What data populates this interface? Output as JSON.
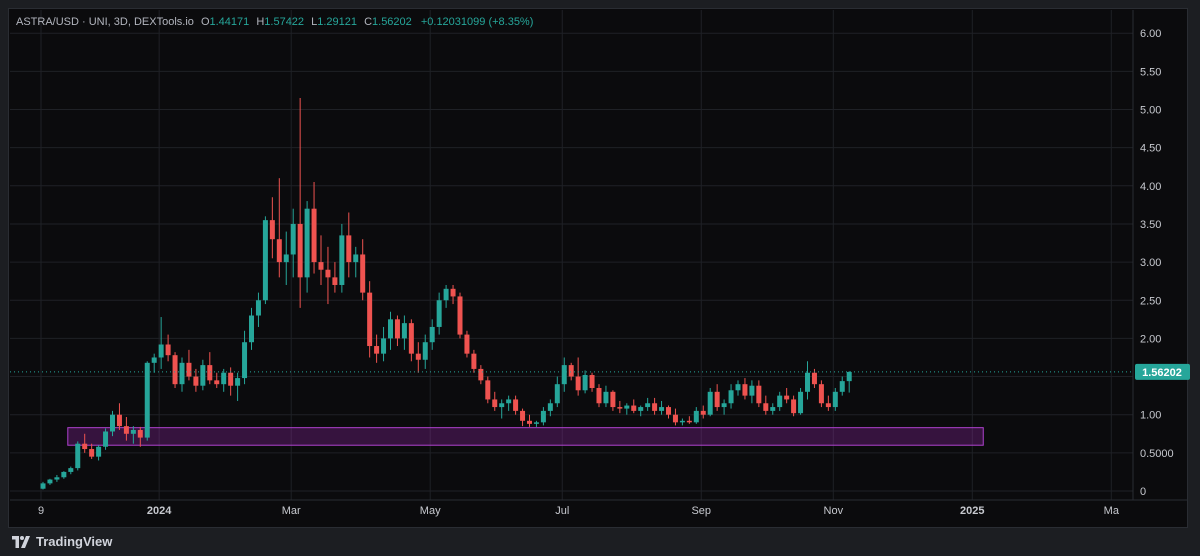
{
  "legend": {
    "symbol": "ASTRA/USD · UNI, 3D, DEXTools.io",
    "o_label": "O",
    "o_value": "1.44171",
    "h_label": "H",
    "h_value": "1.57422",
    "l_label": "L",
    "l_value": "1.29121",
    "c_label": "C",
    "c_value": "1.56202",
    "change": "+0.12031099 (+8.35%)"
  },
  "footer": {
    "brand": "TradingView"
  },
  "colors": {
    "up": "#26a69a",
    "down": "#ef5350",
    "zone": "#a020c0",
    "price_tag": "#26a69a",
    "grid": "#1f2126",
    "bg": "#0b0b0d"
  },
  "chart_data": {
    "type": "candlestick",
    "title": "ASTRA/USD · UNI, 3D, DEXTools.io",
    "ylim": [
      0,
      6.2
    ],
    "y_ticks": [
      "6.00",
      "5.50",
      "5.00",
      "4.50",
      "4.00",
      "3.50",
      "3.00",
      "2.50",
      "2.00",
      "1.50",
      "1.00",
      "0.5000",
      "0"
    ],
    "y_tick_values": [
      6.0,
      5.5,
      5.0,
      4.5,
      4.0,
      3.5,
      3.0,
      2.5,
      2.0,
      1.5,
      1.0,
      0.5,
      0
    ],
    "x_ticks": [
      "9",
      "2024",
      "Mar",
      "May",
      "Jul",
      "Sep",
      "Nov",
      "2025",
      "Ma"
    ],
    "x_tick_index": [
      0,
      17,
      36,
      56,
      75,
      95,
      114,
      134,
      154
    ],
    "last_price_label": "1.56202",
    "last_price": 1.56202,
    "grid": true,
    "demand_zone": {
      "y_from": 0.6,
      "y_to": 0.83,
      "x_from_index": 4,
      "x_to_index": 135
    },
    "candles": [
      [
        0.03,
        0.12,
        0.02,
        0.1
      ],
      [
        0.1,
        0.16,
        0.08,
        0.15
      ],
      [
        0.15,
        0.21,
        0.12,
        0.18
      ],
      [
        0.18,
        0.26,
        0.16,
        0.25
      ],
      [
        0.25,
        0.32,
        0.22,
        0.3
      ],
      [
        0.3,
        0.65,
        0.27,
        0.62
      ],
      [
        0.62,
        0.75,
        0.5,
        0.55
      ],
      [
        0.55,
        0.62,
        0.42,
        0.45
      ],
      [
        0.45,
        0.6,
        0.4,
        0.58
      ],
      [
        0.58,
        0.82,
        0.54,
        0.78
      ],
      [
        0.78,
        1.05,
        0.72,
        1.0
      ],
      [
        1.0,
        1.15,
        0.8,
        0.85
      ],
      [
        0.85,
        0.97,
        0.66,
        0.75
      ],
      [
        0.75,
        0.85,
        0.62,
        0.8
      ],
      [
        0.8,
        0.84,
        0.58,
        0.7
      ],
      [
        0.7,
        1.7,
        0.66,
        1.68
      ],
      [
        1.68,
        1.8,
        1.55,
        1.75
      ],
      [
        1.75,
        2.28,
        1.6,
        1.92
      ],
      [
        1.92,
        2.05,
        1.7,
        1.78
      ],
      [
        1.78,
        1.82,
        1.35,
        1.4
      ],
      [
        1.4,
        1.75,
        1.3,
        1.68
      ],
      [
        1.68,
        1.85,
        1.45,
        1.5
      ],
      [
        1.5,
        1.6,
        1.3,
        1.38
      ],
      [
        1.38,
        1.72,
        1.32,
        1.65
      ],
      [
        1.65,
        1.82,
        1.4,
        1.45
      ],
      [
        1.45,
        1.55,
        1.35,
        1.4
      ],
      [
        1.4,
        1.6,
        1.3,
        1.55
      ],
      [
        1.55,
        1.62,
        1.25,
        1.38
      ],
      [
        1.38,
        1.55,
        1.18,
        1.48
      ],
      [
        1.48,
        2.1,
        1.4,
        1.95
      ],
      [
        1.95,
        2.4,
        1.85,
        2.3
      ],
      [
        2.3,
        2.6,
        2.15,
        2.5
      ],
      [
        2.5,
        3.6,
        2.45,
        3.55
      ],
      [
        3.55,
        3.85,
        3.05,
        3.3
      ],
      [
        3.3,
        4.1,
        2.8,
        3.0
      ],
      [
        3.0,
        3.4,
        2.7,
        3.1
      ],
      [
        3.1,
        3.7,
        2.8,
        3.5
      ],
      [
        3.5,
        5.15,
        2.4,
        2.8
      ],
      [
        2.8,
        3.8,
        2.6,
        3.7
      ],
      [
        3.7,
        4.05,
        2.85,
        3.0
      ],
      [
        3.0,
        3.35,
        2.7,
        2.9
      ],
      [
        2.9,
        3.2,
        2.45,
        2.8
      ],
      [
        2.8,
        3.0,
        2.6,
        2.7
      ],
      [
        2.7,
        3.5,
        2.6,
        3.35
      ],
      [
        3.35,
        3.65,
        2.8,
        3.0
      ],
      [
        3.0,
        3.2,
        2.8,
        3.1
      ],
      [
        3.1,
        3.3,
        2.5,
        2.6
      ],
      [
        2.6,
        2.75,
        1.75,
        1.9
      ],
      [
        1.9,
        2.05,
        1.68,
        1.8
      ],
      [
        1.8,
        2.15,
        1.7,
        2.0
      ],
      [
        2.0,
        2.35,
        1.85,
        2.25
      ],
      [
        2.25,
        2.3,
        1.9,
        2.0
      ],
      [
        2.0,
        2.3,
        1.85,
        2.2
      ],
      [
        2.2,
        2.25,
        1.7,
        1.8
      ],
      [
        1.8,
        1.95,
        1.55,
        1.72
      ],
      [
        1.72,
        2.05,
        1.6,
        1.95
      ],
      [
        1.95,
        2.25,
        1.85,
        2.15
      ],
      [
        2.15,
        2.6,
        2.05,
        2.5
      ],
      [
        2.5,
        2.7,
        2.4,
        2.65
      ],
      [
        2.65,
        2.7,
        2.45,
        2.55
      ],
      [
        2.55,
        2.6,
        2.0,
        2.05
      ],
      [
        2.05,
        2.1,
        1.75,
        1.8
      ],
      [
        1.8,
        1.85,
        1.55,
        1.6
      ],
      [
        1.6,
        1.65,
        1.4,
        1.45
      ],
      [
        1.45,
        1.5,
        1.15,
        1.2
      ],
      [
        1.2,
        1.3,
        1.05,
        1.1
      ],
      [
        1.1,
        1.2,
        0.95,
        1.15
      ],
      [
        1.15,
        1.25,
        1.05,
        1.2
      ],
      [
        1.2,
        1.25,
        1.0,
        1.05
      ],
      [
        1.05,
        1.08,
        0.85,
        0.92
      ],
      [
        0.92,
        1.0,
        0.84,
        0.88
      ],
      [
        0.88,
        0.92,
        0.84,
        0.9
      ],
      [
        0.9,
        1.1,
        0.86,
        1.05
      ],
      [
        1.05,
        1.2,
        0.98,
        1.15
      ],
      [
        1.15,
        1.5,
        1.1,
        1.4
      ],
      [
        1.4,
        1.75,
        1.3,
        1.65
      ],
      [
        1.65,
        1.68,
        1.45,
        1.5
      ],
      [
        1.5,
        1.75,
        1.25,
        1.32
      ],
      [
        1.32,
        1.58,
        1.28,
        1.52
      ],
      [
        1.52,
        1.55,
        1.3,
        1.35
      ],
      [
        1.35,
        1.4,
        1.1,
        1.15
      ],
      [
        1.15,
        1.38,
        1.1,
        1.3
      ],
      [
        1.3,
        1.32,
        1.05,
        1.1
      ],
      [
        1.1,
        1.18,
        1.02,
        1.08
      ],
      [
        1.08,
        1.15,
        1.0,
        1.12
      ],
      [
        1.12,
        1.2,
        1.02,
        1.05
      ],
      [
        1.05,
        1.12,
        0.98,
        1.1
      ],
      [
        1.1,
        1.22,
        1.05,
        1.15
      ],
      [
        1.15,
        1.22,
        1.0,
        1.05
      ],
      [
        1.05,
        1.18,
        1.0,
        1.1
      ],
      [
        1.1,
        1.12,
        0.95,
        1.0
      ],
      [
        1.0,
        1.08,
        0.86,
        0.9
      ],
      [
        0.9,
        0.95,
        0.86,
        0.92
      ],
      [
        0.92,
        0.98,
        0.88,
        0.9
      ],
      [
        0.9,
        1.1,
        0.88,
        1.05
      ],
      [
        1.05,
        1.12,
        0.95,
        1.0
      ],
      [
        1.0,
        1.35,
        0.98,
        1.3
      ],
      [
        1.3,
        1.4,
        1.05,
        1.1
      ],
      [
        1.1,
        1.2,
        1.0,
        1.15
      ],
      [
        1.15,
        1.4,
        1.08,
        1.32
      ],
      [
        1.32,
        1.45,
        1.25,
        1.4
      ],
      [
        1.4,
        1.48,
        1.2,
        1.25
      ],
      [
        1.25,
        1.45,
        1.15,
        1.38
      ],
      [
        1.38,
        1.45,
        1.1,
        1.15
      ],
      [
        1.15,
        1.25,
        1.0,
        1.05
      ],
      [
        1.05,
        1.15,
        1.0,
        1.1
      ],
      [
        1.1,
        1.3,
        1.05,
        1.25
      ],
      [
        1.25,
        1.35,
        1.15,
        1.2
      ],
      [
        1.2,
        1.25,
        0.98,
        1.02
      ],
      [
        1.02,
        1.35,
        1.0,
        1.3
      ],
      [
        1.3,
        1.7,
        1.2,
        1.55
      ],
      [
        1.55,
        1.6,
        1.35,
        1.4
      ],
      [
        1.4,
        1.45,
        1.1,
        1.15
      ],
      [
        1.15,
        1.25,
        1.05,
        1.1
      ],
      [
        1.1,
        1.35,
        1.05,
        1.3
      ],
      [
        1.3,
        1.5,
        1.25,
        1.44
      ],
      [
        1.44,
        1.57,
        1.29,
        1.56
      ]
    ]
  }
}
